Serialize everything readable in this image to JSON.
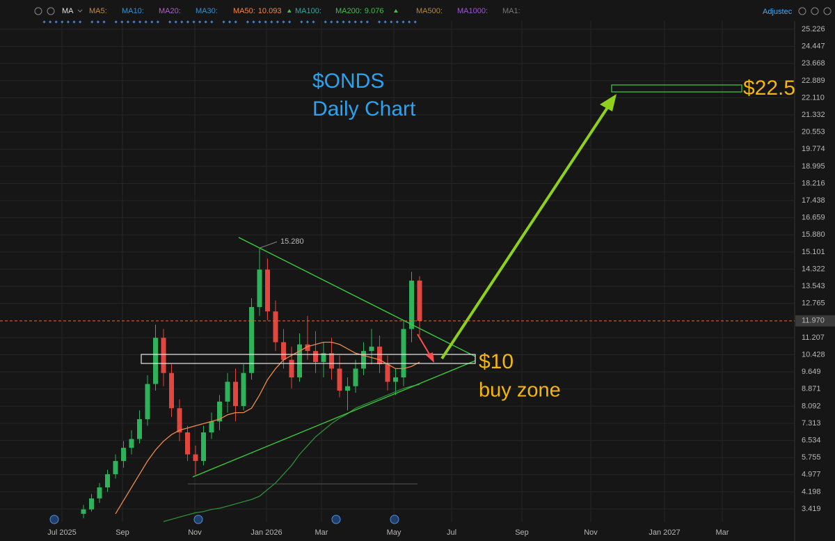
{
  "toolbar": {
    "ma_label": "MA",
    "items": [
      {
        "name": "MA5:",
        "color": "#c98a3a"
      },
      {
        "name": "MA10:",
        "color": "#3b8fc8"
      },
      {
        "name": "MA20:",
        "color": "#b060c8"
      },
      {
        "name": "MA30:",
        "color": "#3b8fc8"
      },
      {
        "name": "MA50:",
        "color": "#f08a4a",
        "value": 10.093
      },
      {
        "name": "MA100:",
        "color": "#2aa8a8"
      },
      {
        "name": "MA200:",
        "color": "#3fbf4f",
        "value": 9.076
      },
      {
        "name": "MA500:",
        "color": "#b8863b"
      },
      {
        "name": "MA1000:",
        "color": "#9a5ad0"
      },
      {
        "name": "MA1:",
        "color": "#777777"
      }
    ],
    "adjust": "Adjustec"
  },
  "chart_data": {
    "type": "candlestick",
    "title": "$ONDS",
    "subtitle": "Daily Chart",
    "up_color": "#2fb35a",
    "down_color": "#e2473f",
    "ylim": [
      2.818,
      25.606
    ],
    "yticks": [
      25.226,
      24.447,
      23.668,
      22.889,
      {
        "value": 22.11,
        "label": "22.110"
      },
      21.332,
      20.553,
      19.774,
      18.995,
      18.216,
      17.438,
      16.659,
      {
        "value": 15.88,
        "label": "15.880"
      },
      15.101,
      14.322,
      13.543,
      12.765,
      11.207,
      10.428,
      9.649,
      8.871,
      8.092,
      7.313,
      6.534,
      5.755,
      4.977,
      4.198,
      3.419
    ],
    "xtick_labels": [
      "Jul 2025",
      "Sep",
      "Nov",
      "Jan 2026",
      "Mar",
      "May",
      "Jul",
      "Sep",
      "Nov",
      "Jan 2027",
      "Mar"
    ],
    "grid": true,
    "ohlc": [
      [
        3.2,
        3.6,
        3.0,
        3.4
      ],
      [
        3.4,
        4.1,
        3.3,
        3.9
      ],
      [
        3.9,
        4.6,
        3.7,
        4.4
      ],
      [
        4.4,
        5.2,
        4.2,
        5.0
      ],
      [
        5.0,
        5.9,
        4.8,
        5.6
      ],
      [
        5.6,
        6.5,
        5.3,
        6.2
      ],
      [
        6.2,
        7.0,
        5.9,
        6.6
      ],
      [
        6.6,
        7.9,
        6.4,
        7.5
      ],
      [
        7.5,
        9.5,
        7.2,
        9.1
      ],
      [
        9.1,
        11.8,
        8.8,
        11.2
      ],
      [
        11.2,
        11.6,
        9.0,
        9.6
      ],
      [
        9.6,
        10.0,
        7.6,
        8.0
      ],
      [
        8.0,
        8.4,
        6.5,
        6.9
      ],
      [
        6.9,
        7.2,
        5.6,
        5.9
      ],
      [
        5.9,
        6.3,
        4.98,
        5.6
      ],
      [
        5.6,
        7.2,
        5.4,
        6.9
      ],
      [
        6.9,
        7.8,
        6.6,
        7.4
      ],
      [
        7.4,
        8.6,
        7.0,
        8.3
      ],
      [
        8.3,
        9.6,
        7.8,
        9.2
      ],
      [
        9.2,
        9.8,
        7.4,
        8.1
      ],
      [
        8.1,
        10.0,
        7.9,
        9.6
      ],
      [
        9.6,
        13.0,
        9.3,
        12.6
      ],
      [
        12.6,
        15.28,
        12.2,
        14.3
      ],
      [
        14.3,
        14.8,
        12.0,
        12.4
      ],
      [
        12.4,
        12.9,
        10.6,
        11.0
      ],
      [
        11.0,
        11.6,
        9.8,
        10.2
      ],
      [
        10.2,
        10.8,
        8.9,
        9.4
      ],
      [
        9.4,
        11.4,
        9.2,
        10.9
      ],
      [
        10.9,
        12.2,
        10.2,
        10.6
      ],
      [
        10.6,
        11.5,
        9.6,
        10.1
      ],
      [
        10.1,
        11.0,
        9.4,
        10.5
      ],
      [
        10.5,
        11.2,
        9.3,
        9.8
      ],
      [
        9.8,
        10.4,
        8.5,
        8.8
      ],
      [
        8.8,
        9.4,
        7.9,
        9.0
      ],
      [
        9.0,
        10.2,
        8.7,
        9.8
      ],
      [
        9.8,
        11.0,
        9.5,
        10.6
      ],
      [
        10.6,
        11.6,
        10.0,
        10.8
      ],
      [
        10.8,
        11.3,
        9.6,
        10.0
      ],
      [
        10.0,
        10.4,
        8.8,
        9.2
      ],
      [
        9.2,
        9.8,
        8.6,
        9.4
      ],
      [
        9.4,
        12.0,
        9.0,
        11.6
      ],
      [
        11.6,
        14.2,
        11.0,
        13.8
      ],
      [
        13.8,
        14.0,
        11.3,
        11.97
      ]
    ],
    "lines": [
      {
        "color": "#f08a4a",
        "values": [
          null,
          null,
          null,
          null,
          3.2,
          3.8,
          4.4,
          5.0,
          5.6,
          6.1,
          6.5,
          6.8,
          7.0,
          7.1,
          7.2,
          7.3,
          7.4,
          7.5,
          7.7,
          7.8,
          7.8,
          8.0,
          8.6,
          9.3,
          9.8,
          10.2,
          10.4,
          10.6,
          10.8,
          10.9,
          11.0,
          11.0,
          10.9,
          10.7,
          10.5,
          10.4,
          10.3,
          10.2,
          10.0,
          9.8,
          9.8,
          9.9,
          10.093
        ]
      },
      {
        "color": "#2f8f3a",
        "values": [
          null,
          null,
          null,
          null,
          null,
          null,
          null,
          null,
          null,
          null,
          2.85,
          2.95,
          3.05,
          3.15,
          3.25,
          3.3,
          3.4,
          3.45,
          3.55,
          3.65,
          3.75,
          3.85,
          4.0,
          4.3,
          4.6,
          5.0,
          5.4,
          5.9,
          6.3,
          6.7,
          7.0,
          7.3,
          7.55,
          7.75,
          8.0,
          8.15,
          8.3,
          8.45,
          8.6,
          8.75,
          8.9,
          9.0,
          9.076
        ]
      }
    ],
    "peak_label": {
      "value": 15.28,
      "label": "15.280"
    },
    "current_price": {
      "value": 11.97,
      "label": "11.970"
    },
    "annotations": [
      {
        "text": "$10"
      },
      {
        "text": "buy zone"
      },
      {
        "text": "$22.5"
      }
    ]
  }
}
